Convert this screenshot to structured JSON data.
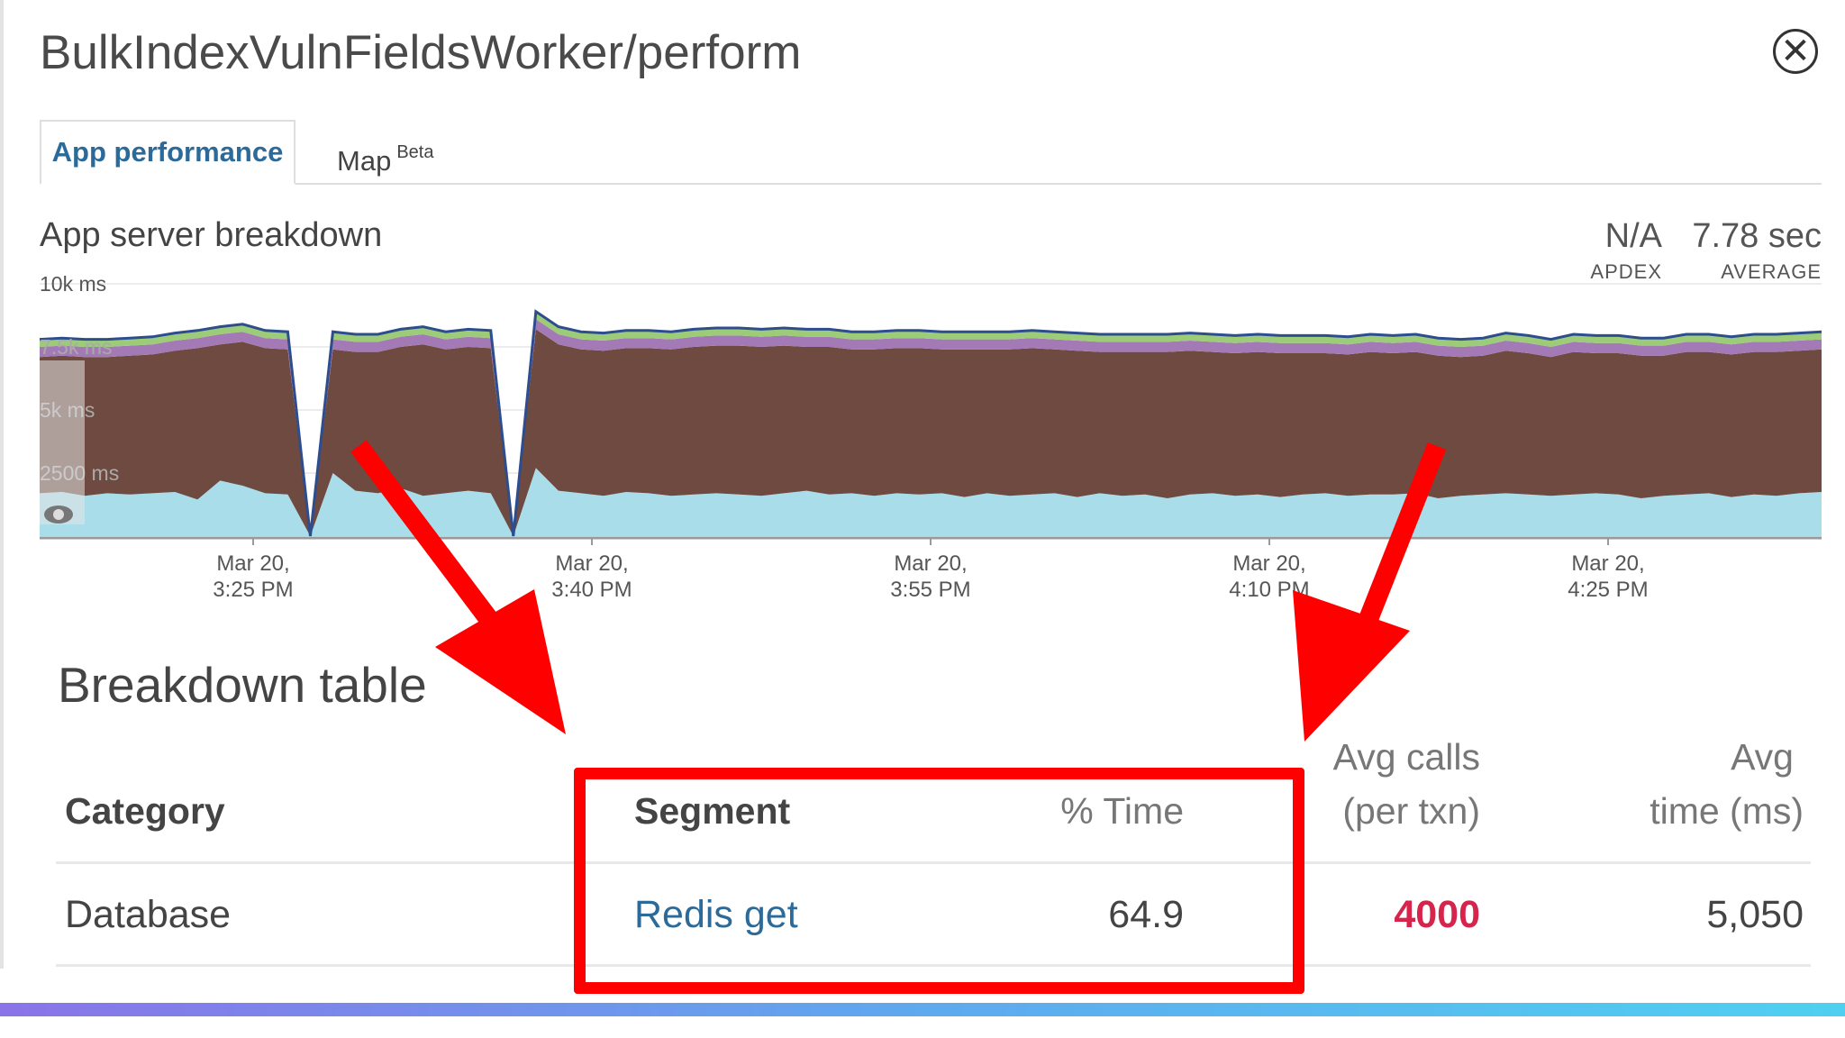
{
  "window": {
    "title": "BulkIndexVulnFieldsWorker/perform",
    "close_symbol": "✕"
  },
  "tabs": [
    {
      "label": "App performance",
      "active": true
    },
    {
      "label": "Map",
      "badge": "Beta",
      "active": false
    }
  ],
  "chart_section": {
    "title": "App server breakdown",
    "stats": [
      {
        "value": "N/A",
        "label": "APDEX"
      },
      {
        "value": "7.78 sec",
        "label": "AVERAGE"
      }
    ]
  },
  "chart_data": {
    "type": "area",
    "title": "",
    "y_unit": "ms",
    "ylim": [
      0,
      10000
    ],
    "y_ticks": [
      "10k ms",
      "7.5k ms",
      "5k ms",
      "2500 ms"
    ],
    "x_ticks": [
      {
        "line1": "Mar 20,",
        "line2": "3:25 PM"
      },
      {
        "line1": "Mar 20,",
        "line2": "3:40 PM"
      },
      {
        "line1": "Mar 20,",
        "line2": "3:55 PM"
      },
      {
        "line1": "Mar 20,",
        "line2": "4:10 PM"
      },
      {
        "line1": "Mar 20,",
        "line2": "4:25 PM"
      }
    ],
    "x_start": "3:15 PM",
    "x_end": "4:34 PM",
    "series_colors": [
      "#a8dde9",
      "#6e4a40",
      "#a47ab6",
      "#9dcc78"
    ],
    "outline_color": "#2d4d8e",
    "series": [
      {
        "values": [
          1700,
          1750,
          1600,
          1700,
          1650,
          1700,
          1750,
          1450,
          2200,
          2000,
          1700,
          1650,
          0,
          2500,
          1800,
          1700,
          1900,
          1600,
          1700,
          1800,
          1700,
          0,
          2700,
          1800,
          1700,
          1600,
          1750,
          1700,
          1600,
          1650,
          1700,
          1650,
          1600,
          1700,
          1800,
          1650,
          1700,
          1600,
          1700,
          1650,
          1700,
          1550,
          1700,
          1600,
          1650,
          1700,
          1550,
          1700,
          1600,
          1650,
          1500,
          1650,
          1700,
          1600,
          1650,
          1550,
          1650,
          1700,
          1600,
          1650,
          1650,
          1700,
          1500,
          1600,
          1650,
          1700,
          1650,
          1600,
          1650,
          1700,
          1650,
          1500,
          1600,
          1650,
          1700,
          1550,
          1650,
          1600,
          1700,
          1750
        ]
      },
      {
        "values": [
          5400,
          5400,
          5500,
          5400,
          5500,
          5500,
          5600,
          6000,
          5400,
          5700,
          5750,
          5750,
          0,
          4900,
          5500,
          5600,
          5600,
          6000,
          5700,
          5700,
          5750,
          0,
          5500,
          5800,
          5700,
          5750,
          5700,
          5750,
          5800,
          5850,
          5850,
          5900,
          5900,
          5850,
          5700,
          5850,
          5700,
          5800,
          5750,
          5800,
          5700,
          5850,
          5700,
          5800,
          5800,
          5700,
          5800,
          5600,
          5700,
          5650,
          5800,
          5700,
          5600,
          5650,
          5650,
          5700,
          5600,
          5550,
          5600,
          5650,
          5600,
          5600,
          5650,
          5500,
          5500,
          5650,
          5600,
          5500,
          5650,
          5550,
          5600,
          5650,
          5550,
          5650,
          5600,
          5650,
          5650,
          5700,
          5650,
          5650
        ]
      },
      {
        "values": [
          400,
          400,
          400,
          400,
          400,
          400,
          400,
          400,
          400,
          400,
          400,
          400,
          0,
          400,
          400,
          400,
          400,
          400,
          400,
          400,
          400,
          0,
          400,
          400,
          400,
          400,
          400,
          400,
          400,
          400,
          400,
          400,
          400,
          400,
          400,
          400,
          400,
          400,
          400,
          400,
          400,
          400,
          400,
          400,
          400,
          400,
          400,
          400,
          400,
          400,
          400,
          400,
          400,
          400,
          400,
          400,
          400,
          400,
          400,
          400,
          400,
          400,
          400,
          400,
          400,
          400,
          400,
          400,
          400,
          400,
          400,
          400,
          400,
          400,
          400,
          400,
          400,
          400,
          400,
          400
        ]
      },
      {
        "values": [
          300,
          300,
          300,
          300,
          300,
          300,
          300,
          300,
          300,
          300,
          300,
          300,
          0,
          300,
          300,
          300,
          300,
          300,
          300,
          300,
          300,
          0,
          300,
          300,
          300,
          300,
          300,
          300,
          300,
          300,
          300,
          300,
          300,
          300,
          300,
          300,
          300,
          300,
          300,
          300,
          300,
          300,
          300,
          300,
          300,
          300,
          300,
          300,
          300,
          300,
          300,
          300,
          300,
          300,
          300,
          300,
          300,
          300,
          300,
          300,
          300,
          300,
          300,
          300,
          300,
          300,
          300,
          300,
          300,
          300,
          300,
          300,
          300,
          300,
          300,
          300,
          300,
          300,
          300,
          300
        ]
      }
    ]
  },
  "breakdown": {
    "title": "Breakdown table",
    "headers": {
      "category": "Category",
      "segment": "Segment",
      "pct_time": "% Time",
      "avg_calls_1": "Avg calls",
      "avg_calls_2": "(per txn)",
      "avg_time_1": "Avg",
      "avg_time_2": "time (ms)"
    },
    "rows": [
      {
        "category": "Database",
        "segment": "Redis get",
        "pct_time": "64.9",
        "avg_calls": "4000",
        "avg_time": "5,050"
      }
    ]
  },
  "colors": {
    "link": "#2b6a99",
    "highlight": "#d6244d",
    "annotation": "#ff0000"
  }
}
